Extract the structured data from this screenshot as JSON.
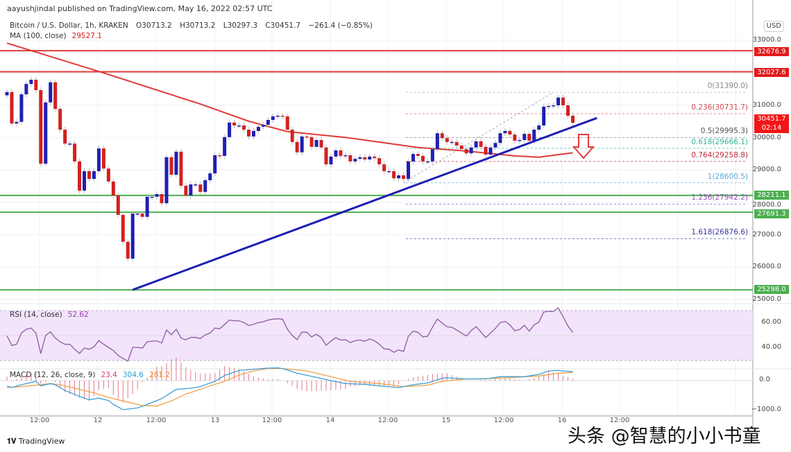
{
  "header": {
    "published": "aayushjindal published on TradingView.com, May 16, 2022 02:57 UTC"
  },
  "legend": {
    "symbol": "Bitcoin / U.S. Dollar, 1h, KRAKEN",
    "open": "O30713.2",
    "high": "H30713.2",
    "low": "L30297.3",
    "close": "C30451.7",
    "change": "−261.4 (−0.85%)",
    "ma_label": "MA (100, close)",
    "ma_value": "29527.1",
    "rsi_label": "RSI (14, close)",
    "rsi_value": "52.62",
    "macd_label": "MACD (12, 26, close, 9)",
    "macd_hist": "23.4",
    "macd_value": "304.6",
    "macd_signal": "281.2"
  },
  "axis": {
    "currency": "USD",
    "price_ticks": [
      "33000.0",
      "32000.0",
      "31000.0",
      "30000.0",
      "29000.0",
      "28000.0",
      "27000.0",
      "26000.0",
      "25000.0"
    ],
    "rsi_ticks": [
      "60.00",
      "40.00"
    ],
    "macd_ticks": [
      "0.0",
      "−1000.0"
    ],
    "time_ticks": [
      "12:00",
      "12",
      "12:00",
      "13",
      "12:00",
      "14",
      "12:00",
      "15",
      "12:00",
      "16",
      "12:00"
    ]
  },
  "price_labels": {
    "last": "30451.7",
    "countdown": "02:14",
    "res1": "32676.9",
    "res2": "32027.6",
    "sup1": "28211.1",
    "sup2": "27691.3",
    "sup3": "25298.0"
  },
  "fib_labels": [
    "0(31390.0)",
    "0.236(30731.7)",
    "0.5(29995.3)",
    "0.618(29666.1)",
    "0.764(29258.8)",
    "1(28600.5)",
    "1.236(27942.2)",
    "1.618(26876.6)"
  ],
  "footer": {
    "brand": "TradingView",
    "watermark": "头条 @智慧的小小书童"
  },
  "colors": {
    "up": "#1f1fb4",
    "down": "#d42020",
    "ma": "#e03a35",
    "trend": "#1f1fb4",
    "resistance": "#e23b3b",
    "support": "#4caf50",
    "rsi": "#8e5a9e",
    "macd": "#3ca0d8",
    "signal": "#f0a04a",
    "hist": "#e07a8a"
  },
  "chart_data": {
    "type": "candlestick",
    "interval": "1h",
    "ylim": [
      25000,
      33000
    ],
    "closes": [
      31400,
      30430,
      30480,
      31330,
      31650,
      31780,
      31460,
      29190,
      31080,
      31700,
      30880,
      30240,
      29810,
      29810,
      29260,
      28360,
      28960,
      28720,
      28960,
      29660,
      29040,
      28640,
      28210,
      27610,
      26780,
      26260,
      27650,
      27650,
      27550,
      28170,
      28170,
      28250,
      27970,
      29390,
      28850,
      29560,
      28510,
      28210,
      28550,
      28550,
      28320,
      28680,
      28890,
      29450,
      29430,
      30010,
      30460,
      30370,
      30370,
      30240,
      30030,
      30200,
      30330,
      30390,
      30540,
      30650,
      30670,
      30650,
      30240,
      29860,
      29540,
      30030,
      30010,
      29710,
      29920,
      29690,
      29170,
      29410,
      29600,
      29430,
      29450,
      29260,
      29340,
      29390,
      29320,
      29410,
      29360,
      29170,
      28960,
      28960,
      28740,
      28830,
      28720,
      29260,
      29490,
      29430,
      29260,
      29260,
      29640,
      30130,
      29980,
      29860,
      29860,
      29750,
      29640,
      29510,
      29690,
      29880,
      29710,
      29470,
      29690,
      29830,
      30130,
      30200,
      30090,
      29900,
      29920,
      30110,
      29900,
      30240,
      30370,
      30950,
      30970,
      30990,
      31230,
      30990,
      30670,
      30451.7
    ],
    "ma100": [
      [
        0,
        32910
      ],
      [
        20,
        31990
      ],
      [
        40,
        31030
      ],
      [
        50,
        30500
      ],
      [
        58,
        30180
      ],
      [
        70,
        30000
      ],
      [
        85,
        29690
      ],
      [
        95,
        29580
      ],
      [
        105,
        29430
      ],
      [
        110,
        29390
      ],
      [
        117,
        29527.1
      ]
    ],
    "horizontal_levels": {
      "resistance": [
        32676.9,
        32027.6
      ],
      "support": [
        28211.1,
        27691.3,
        25298.0
      ]
    },
    "trendline": [
      [
        26,
        25298
      ],
      [
        122,
        30600
      ]
    ],
    "fib_retracement": {
      "from": [
        82,
        28600.5
      ],
      "to": [
        113,
        31390.0
      ],
      "levels": [
        [
          0,
          31390.0
        ],
        [
          0.236,
          30731.7
        ],
        [
          0.5,
          29995.3
        ],
        [
          0.618,
          29666.1
        ],
        [
          0.764,
          29258.8
        ],
        [
          1,
          28600.5
        ],
        [
          1.236,
          27942.2
        ],
        [
          1.618,
          26876.6
        ]
      ]
    },
    "rsi": {
      "band": [
        30,
        70
      ],
      "values": [
        49.8,
        42,
        43,
        52,
        55,
        56,
        52,
        35.6,
        50,
        53,
        48,
        45,
        43,
        43,
        39,
        35.6,
        40,
        39,
        41,
        46,
        43,
        40.5,
        38,
        34,
        31.7,
        29.4,
        40.5,
        40.5,
        40,
        45,
        45.5,
        45.7,
        44,
        54.4,
        50.6,
        55,
        48,
        46.6,
        48.5,
        48.5,
        47.6,
        50.5,
        52,
        56,
        55.4,
        58.9,
        62.4,
        61.8,
        61.8,
        60.4,
        58,
        59,
        60.4,
        61,
        62.4,
        63.1,
        63.5,
        63,
        55,
        50,
        46.7,
        52.8,
        52.6,
        48.9,
        51,
        48.3,
        42.2,
        45.6,
        48.3,
        46.4,
        46.7,
        44.3,
        45.9,
        46.4,
        45.4,
        47.3,
        45.8,
        43,
        39.4,
        39,
        36.6,
        38.5,
        37.2,
        49.4,
        53.5,
        52.6,
        48.9,
        49.4,
        56.8,
        63.2,
        60,
        57,
        56.6,
        54.4,
        52,
        49.6,
        53.9,
        57.2,
        52.9,
        48.3,
        52,
        55.7,
        60.4,
        61.3,
        58.5,
        53.9,
        54.8,
        58.2,
        53.5,
        58.5,
        60.8,
        68.9,
        69.3,
        69.3,
        72.2,
        65,
        57.6,
        52.62
      ]
    },
    "macd": [
      [
        0,
        -183
      ],
      [
        1,
        -238
      ],
      [
        3,
        -143
      ],
      [
        6,
        -24
      ],
      [
        7,
        -183
      ],
      [
        9,
        -103
      ],
      [
        10,
        -143
      ],
      [
        12,
        -341
      ],
      [
        15,
        -540
      ],
      [
        17,
        -659
      ],
      [
        19,
        -603
      ],
      [
        21,
        -683
      ],
      [
        22,
        -818
      ],
      [
        24,
        -1000
      ],
      [
        27,
        -937
      ],
      [
        29,
        -818
      ],
      [
        32,
        -619
      ],
      [
        35,
        -302
      ],
      [
        38,
        -262
      ],
      [
        40,
        -206
      ],
      [
        43,
        -24
      ],
      [
        45,
        175
      ],
      [
        48,
        349
      ],
      [
        51,
        389
      ],
      [
        54,
        429
      ],
      [
        56,
        437
      ],
      [
        57,
        413
      ],
      [
        60,
        254
      ],
      [
        64,
        111
      ],
      [
        67,
        0
      ],
      [
        70,
        -103
      ],
      [
        74,
        -127
      ],
      [
        77,
        -183
      ],
      [
        81,
        -238
      ],
      [
        84,
        -143
      ],
      [
        87,
        -79
      ],
      [
        90,
        79
      ],
      [
        91,
        95
      ],
      [
        95,
        56
      ],
      [
        99,
        56
      ],
      [
        102,
        135
      ],
      [
        107,
        135
      ],
      [
        110,
        214
      ],
      [
        112,
        333
      ],
      [
        114,
        349
      ],
      [
        117,
        304.6
      ]
    ],
    "signal": [
      [
        0,
        -238
      ],
      [
        3,
        -206
      ],
      [
        6,
        -159
      ],
      [
        9,
        -103
      ],
      [
        11,
        -143
      ],
      [
        14,
        -262
      ],
      [
        18,
        -421
      ],
      [
        21,
        -579
      ],
      [
        24,
        -698
      ],
      [
        28,
        -857
      ],
      [
        31,
        -873
      ],
      [
        34,
        -698
      ],
      [
        37,
        -460
      ],
      [
        40,
        -302
      ],
      [
        42,
        -183
      ],
      [
        45,
        -24
      ],
      [
        48,
        190
      ],
      [
        51,
        333
      ],
      [
        54,
        413
      ],
      [
        57,
        413
      ],
      [
        62,
        333
      ],
      [
        67,
        135
      ],
      [
        71,
        -24
      ],
      [
        77,
        -103
      ],
      [
        82,
        -206
      ],
      [
        87,
        -159
      ],
      [
        90,
        -24
      ],
      [
        95,
        56
      ],
      [
        100,
        71
      ],
      [
        105,
        111
      ],
      [
        110,
        159
      ],
      [
        114,
        254
      ],
      [
        117,
        281.2
      ]
    ]
  }
}
